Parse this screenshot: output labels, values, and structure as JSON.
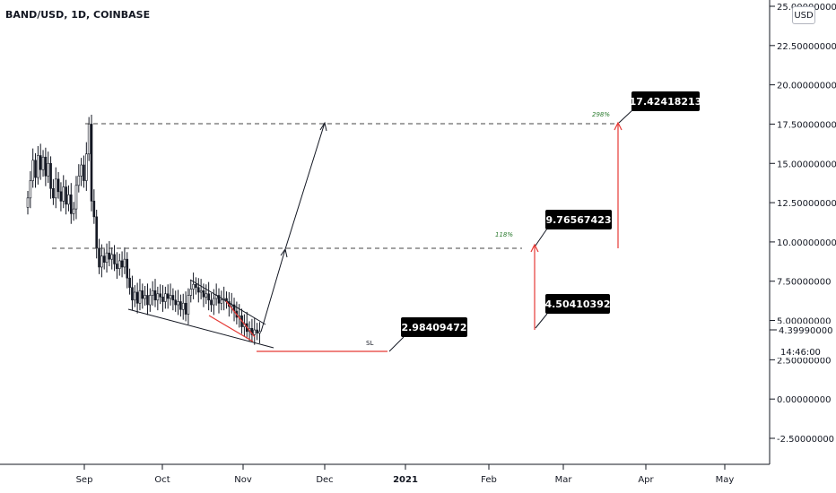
{
  "header": {
    "symbol": "BAND/USD, 1D, COINBASE",
    "currency_button": "USD"
  },
  "chart_data": {
    "type": "candlestick",
    "y_axis": {
      "ticks": [
        25,
        22.5,
        20,
        17.5,
        15,
        12.5,
        10,
        7.5,
        5,
        2.5,
        0,
        -2.5
      ],
      "tick_labels": [
        "25.00000000",
        "22.50000000",
        "20.00000000",
        "17.50000000",
        "15.00000000",
        "12.50000000",
        "10.00000000",
        "7.50000000",
        "5.00000000",
        "2.50000000",
        "0.00000000",
        "-2.50000000"
      ],
      "ylim": [
        -3.3,
        25
      ],
      "price_tag": {
        "label": "4.39990000",
        "value": 4.3999
      },
      "countdown": "14:46:00"
    },
    "x_axis": {
      "tick_labels": [
        "Sep",
        "Oct",
        "Nov",
        "Dec",
        "2021",
        "Feb",
        "Mar",
        "Apr",
        "May"
      ]
    },
    "candles_close": [
      12.8,
      13.9,
      15.2,
      14.1,
      15.5,
      14.6,
      15.4,
      14.2,
      15.0,
      13.4,
      12.8,
      14.0,
      13.2,
      12.6,
      13.5,
      12.4,
      13.0,
      11.8,
      12.1,
      13.6,
      14.2,
      14.9,
      13.9,
      15.6,
      17.5,
      12.6,
      11.6,
      9.6,
      8.4,
      9.1,
      8.7,
      9.3,
      8.9,
      9.2,
      8.6,
      8.3,
      8.8,
      8.4,
      8.9,
      7.7,
      7.1,
      6.3,
      6.8,
      6.1,
      6.9,
      6.4,
      6.6,
      6.0,
      6.6,
      6.9,
      6.3,
      6.7,
      6.5,
      6.2,
      6.7,
      6.4,
      6.6,
      6.3,
      6.0,
      6.2,
      5.7,
      6.1,
      5.4,
      6.6,
      7.0,
      7.3,
      7.1,
      6.8,
      6.9,
      6.5,
      6.7,
      6.3,
      6.0,
      6.4,
      6.6,
      6.1,
      6.3,
      6.4,
      6.2,
      5.9,
      6.0,
      5.6,
      5.2,
      5.3,
      4.6,
      4.8,
      4.3,
      4.5,
      4.1,
      4.4,
      4.2,
      4.3
    ],
    "annotations": {
      "labels": [
        {
          "text": "17.42418213",
          "value": 17.42418213
        },
        {
          "text": "9.76567423",
          "value": 9.76567423
        },
        {
          "text": "4.50410392",
          "value": 4.50410392
        },
        {
          "text": "2.98409472",
          "value": 2.98409472
        }
      ],
      "percent_labels": [
        "298%",
        "118%"
      ],
      "sl_label": "SL",
      "levels": {
        "target_1": 9.5,
        "target_2": 17.5,
        "stop_loss": 2.7
      }
    }
  }
}
